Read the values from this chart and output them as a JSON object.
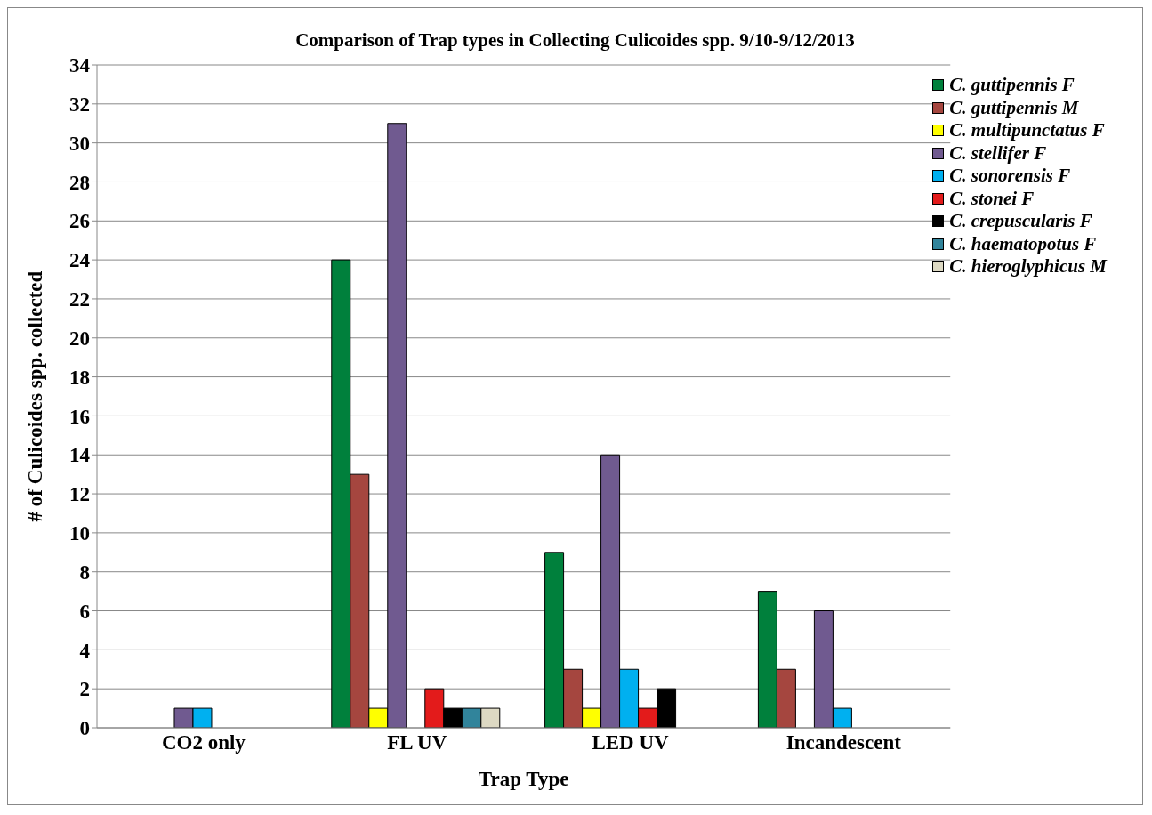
{
  "chart_data": {
    "type": "bar",
    "title": "Comparison of Trap types in Collecting Culicoides spp. 9/10-9/12/2013",
    "xlabel": "Trap Type",
    "ylabel": "# of Culicoides spp. collected",
    "categories": [
      "CO2 only",
      "FL UV",
      "LED UV",
      "Incandescent"
    ],
    "series": [
      {
        "name": "C. guttipennis F",
        "color": "#00803c",
        "values": [
          0,
          24,
          9,
          7
        ]
      },
      {
        "name": "C. guttipennis M",
        "color": "#a5463f",
        "values": [
          0,
          13,
          3,
          3
        ]
      },
      {
        "name": "C. multipunctatus F",
        "color": "#ffff00",
        "values": [
          0,
          1,
          1,
          0
        ]
      },
      {
        "name": "C. stellifer F",
        "color": "#705a90",
        "values": [
          1,
          31,
          14,
          6
        ]
      },
      {
        "name": "C. sonorensis F",
        "color": "#00b0f0",
        "values": [
          1,
          0,
          3,
          1
        ]
      },
      {
        "name": "C. stonei F",
        "color": "#e31b1b",
        "values": [
          0,
          2,
          1,
          0
        ]
      },
      {
        "name": "C. crepuscularis F",
        "color": "#000000",
        "values": [
          0,
          1,
          2,
          0
        ]
      },
      {
        "name": "C. haematopotus F",
        "color": "#31849b",
        "values": [
          0,
          1,
          0,
          0
        ]
      },
      {
        "name": "C. hieroglyphicus M",
        "color": "#ddd9c3",
        "values": [
          0,
          1,
          0,
          0
        ]
      }
    ],
    "ylim": [
      0,
      34
    ],
    "yticks": [
      0,
      2,
      4,
      6,
      8,
      10,
      12,
      14,
      16,
      18,
      20,
      22,
      24,
      26,
      28,
      30,
      32,
      34
    ],
    "grid": "y",
    "legend": "top right"
  }
}
